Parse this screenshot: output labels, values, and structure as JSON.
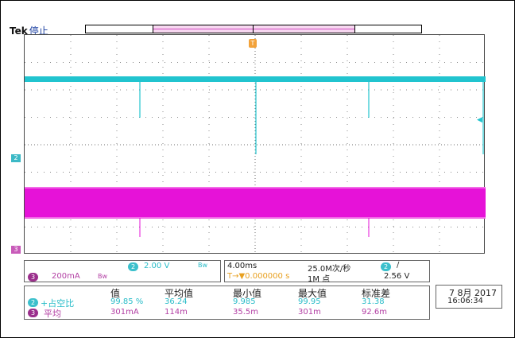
{
  "header": {
    "brand": "Tek",
    "state": "停止"
  },
  "trigger_marker": "T",
  "channel_markers": {
    "ch2": "2",
    "ch3": "3"
  },
  "channel_readout": {
    "ch2_badge": "2",
    "ch2_scale": "2.00 V",
    "ch2_bw_icon": "Bw",
    "ch3_badge": "3",
    "ch3_scale": "200mA",
    "ch3_bw_icon": "Bw"
  },
  "horizontal_readout": {
    "timebase": "4.00ms",
    "sample_rate": "25.0M次/秒",
    "trigger_pos": "T→▼0.000000 s",
    "record_length": "1M 点",
    "trig_badge": "2",
    "trig_slope": "∕",
    "trig_level": "2.56 V"
  },
  "measurements": {
    "headers": [
      "值",
      "平均值",
      "最小值",
      "最大值",
      "标准差"
    ],
    "rows": [
      {
        "badge": "2",
        "label": "+占空比",
        "values": [
          "99.85 %",
          "36.24",
          "9.985",
          "99.95",
          "31.38"
        ]
      },
      {
        "badge": "3",
        "label": "平均",
        "values": [
          "301mA",
          "114m",
          "35.5m",
          "301m",
          "92.6m"
        ]
      }
    ]
  },
  "datetime": {
    "date": "7 8月 2017",
    "time": "16:06:34"
  },
  "colors": {
    "ch2": "#21c4cf",
    "ch3": "#e612d8",
    "grid": "#6d6d6d",
    "trigger": "#f2a23a"
  },
  "icons": {
    "trigger_marker": "trigger-position-icon",
    "slope": "rising-edge-icon",
    "bandwidth": "bandwidth-limit-icon"
  }
}
